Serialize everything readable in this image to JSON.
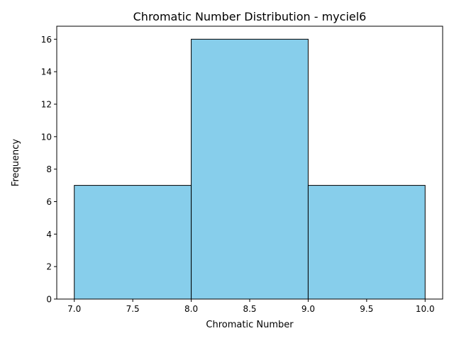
{
  "chart_data": {
    "type": "bar",
    "title": "Chromatic Number Distribution - myciel6",
    "xlabel": "Chromatic Number",
    "ylabel": "Frequency",
    "bins": [
      {
        "x0": 7.0,
        "x1": 8.0,
        "count": 7
      },
      {
        "x0": 8.0,
        "x1": 9.0,
        "count": 16
      },
      {
        "x0": 9.0,
        "x1": 10.0,
        "count": 7
      }
    ],
    "xlim": [
      6.85,
      10.15
    ],
    "ylim": [
      0,
      16.8
    ],
    "xticks": [
      7.0,
      7.5,
      8.0,
      8.5,
      9.0,
      9.5,
      10.0
    ],
    "xtick_labels": [
      "7.0",
      "7.5",
      "8.0",
      "8.5",
      "9.0",
      "9.5",
      "10.0"
    ],
    "yticks": [
      0,
      2,
      4,
      6,
      8,
      10,
      12,
      14,
      16
    ],
    "ytick_labels": [
      "0",
      "2",
      "4",
      "6",
      "8",
      "10",
      "12",
      "14",
      "16"
    ],
    "grid": false,
    "legend": false,
    "colors": {
      "bar_fill": "#87ceeb",
      "bar_edge": "#000000",
      "axes": "#000000",
      "background": "#ffffff"
    }
  }
}
